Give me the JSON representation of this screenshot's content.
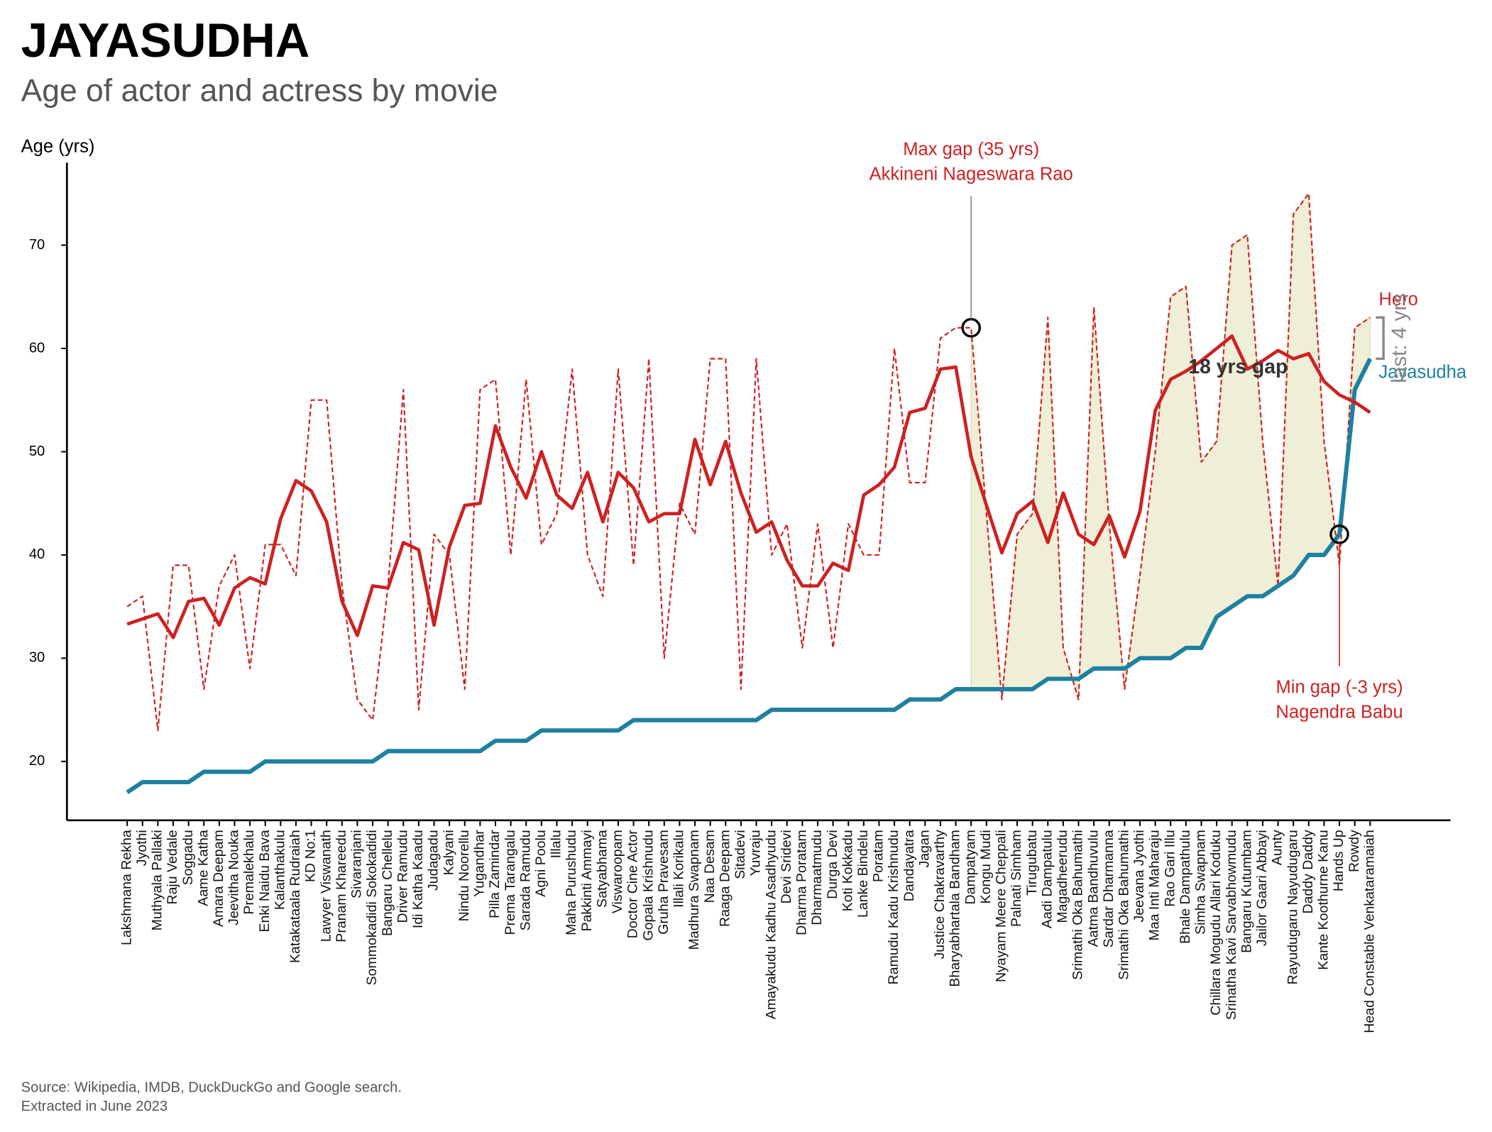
{
  "chart_data": {
    "type": "line",
    "title": "JAYASUDHA",
    "subtitle": "Age of actor and actress by movie",
    "y_label": "Age (yrs)",
    "source": [
      "Source: Wikipedia, IMDB, DuckDuckGo and Google search.",
      "Extracted in June 2023"
    ],
    "categories": [
      "Lakshmana Rekha",
      "Jyothi",
      "Muthyala Pallaki",
      "Raju Vedale",
      "Soggadu",
      "Aame Katha",
      "Amara Deepam",
      "Jeevitha Nouka",
      "Premalekhalu",
      "Enki Naidu Bava",
      "Kalanthakulu",
      "Katakataala Rudraiah",
      "KD No:1",
      "Lawyer Viswanath",
      "Pranam Khareedu",
      "Sivaranjani",
      "Sommokadidi Sokokadidi",
      "Bangaru Chellelu",
      "Driver Ramudu",
      "Idi Katha Kaadu",
      "Judagadu",
      "Kalyani",
      "Nindu Noorellu",
      "Yugandhar",
      "Pilla Zamindar",
      "Prema Tarangalu",
      "Sarada Ramudu",
      "Agni Poolu",
      "Illalu",
      "Maha Purushudu",
      "Pakkinti Ammayi",
      "Satyabhama",
      "Viswaroopam",
      "Doctor Cine Actor",
      "Gopala Krishnudu",
      "Gruha Pravesam",
      "Illali Korikalu",
      "Madhura Swapnam",
      "Naa Desam",
      "Raaga Deepam",
      "Sitadevi",
      "Yuvraju",
      "Amayakudu Kadhu Asadhyudu",
      "Devi Sridevi",
      "Dharma Poratam",
      "Dharmaatmudu",
      "Durga Devi",
      "Koti Kokkadu",
      "Lanke Bindelu",
      "Poratam",
      "Ramudu Kadu Krishnudu",
      "Dandayatra",
      "Jagan",
      "Justice Chakravarthy",
      "Bharyabhartala Bandham",
      "Dampatyam",
      "Kongu Mudi",
      "Nyayam Meere Cheppali",
      "Palnati Simham",
      "Tirugubatu",
      "Aadi Dampatulu",
      "Magadheerudu",
      "Srimathi Oka Bahumathi",
      "Aatma Bandhuvulu",
      "Sardar Dharmanna",
      "Srimathi Oka Bahumathi",
      "Jeevana Jyothi",
      "Maa Inti Maharaju",
      "Rao Gari Illu",
      "Bhale Dampathulu",
      "Simha Swapnam",
      "Chillara Mogudu Allari Koduku",
      "Srinatha Kavi Sarvabhowmudu",
      "Bangaru Kutumbam",
      "Jailor Gaari Abbayi",
      "Aunty",
      "Rayudugaru Nayudugaru",
      "Daddy Daddy",
      "Kante Koothurne Kanu",
      "Hands Up",
      "Rowdy",
      "Head Constable Venkataramaiah"
    ],
    "series": [
      {
        "name": "Hero",
        "color": "#cc2222",
        "style": "dashed",
        "values": [
          35,
          36,
          23,
          39,
          39,
          27,
          37,
          40,
          29,
          41,
          41,
          38,
          55,
          55,
          37,
          26,
          24,
          37,
          56,
          25,
          42,
          40,
          27,
          56,
          57,
          40,
          57,
          41,
          44,
          58,
          40,
          36,
          58,
          39,
          59,
          30,
          45,
          42,
          59,
          59,
          27,
          59,
          40,
          43,
          31,
          43,
          31,
          43,
          40,
          40,
          60,
          47,
          47,
          61,
          62,
          62,
          44,
          26,
          42,
          44,
          63,
          31,
          26,
          64,
          43,
          27,
          38,
          50,
          65,
          66,
          49,
          51,
          70,
          71,
          51,
          37,
          73,
          75,
          51,
          39,
          62,
          63
        ]
      },
      {
        "name": "Jayasudha",
        "color": "#1f80a0",
        "style": "solid",
        "values": [
          17,
          18,
          18,
          18,
          18,
          19,
          19,
          19,
          19,
          20,
          20,
          20,
          20,
          20,
          20,
          20,
          20,
          21,
          21,
          21,
          21,
          21,
          21,
          21,
          22,
          22,
          22,
          23,
          23,
          23,
          23,
          23,
          23,
          24,
          24,
          24,
          24,
          24,
          24,
          24,
          24,
          24,
          25,
          25,
          25,
          25,
          25,
          25,
          25,
          25,
          25,
          26,
          26,
          26,
          27,
          27,
          27,
          27,
          27,
          27,
          28,
          28,
          28,
          29,
          29,
          29,
          30,
          30,
          30,
          31,
          31,
          34,
          35,
          36,
          36,
          37,
          38,
          40,
          40,
          42,
          56,
          59
        ]
      },
      {
        "color": "#cc2222",
        "style": "solid",
        "values": [
          33.3,
          33.8,
          34.3,
          32,
          35.5,
          35.8,
          33.2,
          36.8,
          37.8,
          37.2,
          43.5,
          47.2,
          46.2,
          43.2,
          35.5,
          32.2,
          37,
          36.8,
          41.2,
          40.5,
          33.2,
          40.8,
          44.8,
          45,
          52.5,
          48.5,
          45.5,
          50,
          45.8,
          44.5,
          48,
          43.2,
          48,
          46.5,
          43.2,
          44,
          44,
          51.2,
          46.8,
          51,
          46,
          42.2,
          43.2,
          39.5,
          37,
          37,
          39.2,
          38.5,
          45.8,
          46.8,
          48.5,
          53.8,
          54.2,
          58,
          58.2,
          49.5,
          44.8,
          40.2,
          44,
          45.2,
          41.2,
          46,
          42,
          41,
          43.8,
          39.8,
          44.2,
          54,
          57,
          57.8,
          58.8,
          60,
          61.2,
          58,
          58.8,
          59.8,
          59,
          59.5,
          56.8,
          55.5,
          54.8,
          53.8
        ]
      }
    ],
    "ylim": [
      14.3,
      78
    ],
    "yticks": [
      20,
      30,
      40,
      50,
      60,
      70
    ],
    "shade_color": "#efeed6",
    "max_gap": {
      "lines": [
        "Max gap (35 yrs)",
        "Akkineni Nageswara Rao"
      ],
      "category": "Dampatyam",
      "series": "Hero"
    },
    "min_gap": {
      "lines": [
        "Min gap (-3 yrs)",
        "Nagendra Babu"
      ],
      "category": "Hands Up",
      "series": "Jayasudha"
    },
    "gap_label": "18 yrs gap",
    "last_label": "last: 4 yrs"
  }
}
